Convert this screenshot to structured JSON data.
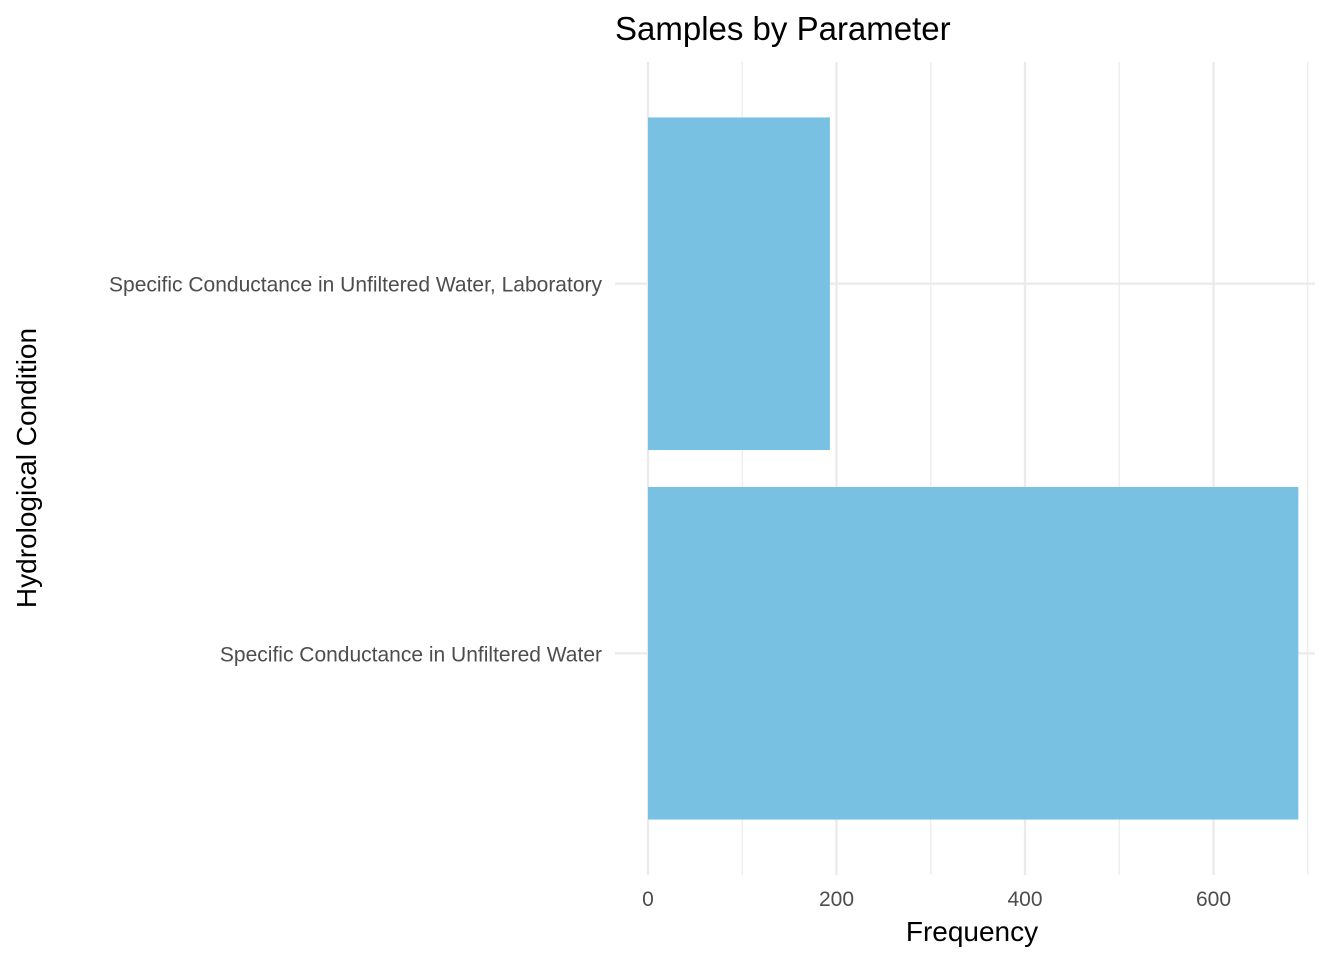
{
  "chart_data": {
    "type": "bar",
    "orientation": "horizontal",
    "title": "Samples by Parameter",
    "xlabel": "Frequency",
    "ylabel": "Hydrological Condition",
    "categories": [
      "Specific Conductance in Unfiltered Water, Laboratory",
      "Specific Conductance in Unfiltered Water"
    ],
    "values": [
      193,
      690
    ],
    "xlim": [
      0,
      700
    ],
    "xticks": [
      0,
      200,
      400,
      600
    ],
    "grid": true,
    "legend": "none",
    "bar_color": "#78C1E3",
    "grid_color": "#EBEBEB"
  }
}
